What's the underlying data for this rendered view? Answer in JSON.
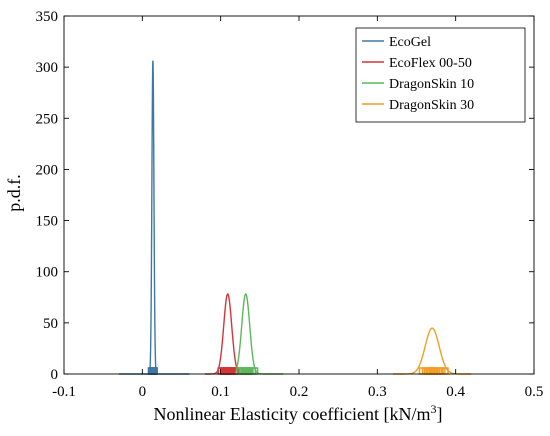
{
  "chart_data": {
    "type": "line",
    "title": "",
    "xlabel": "Nonlinear Elasticity coefficient [kN/m",
    "xlabel_sup": "3",
    "xlabel_end": "]",
    "ylabel": "p.d.f.",
    "xlim": [
      -0.1,
      0.5
    ],
    "ylim": [
      0,
      350
    ],
    "xticks": [
      -0.1,
      0,
      0.1,
      0.2,
      0.3,
      0.4,
      0.5
    ],
    "xtick_labels": [
      "-0.1",
      "0",
      "0.1",
      "0.2",
      "0.3",
      "0.4",
      "0.5"
    ],
    "yticks": [
      0,
      50,
      100,
      150,
      200,
      250,
      300,
      350
    ],
    "ytick_labels": [
      "0",
      "50",
      "100",
      "150",
      "200",
      "250",
      "300",
      "350"
    ],
    "grid": false,
    "legend_position": "top-right",
    "series": [
      {
        "name": "EcoGel",
        "color": "#3f78a6",
        "mean": 0.0135,
        "sd": 0.0013,
        "curve_range": [
          -0.03,
          0.06
        ],
        "samples": [
          0.011,
          0.0118,
          0.0124,
          0.0128,
          0.0131,
          0.0134,
          0.0136,
          0.0138,
          0.0141,
          0.0145,
          0.015,
          0.0158
        ]
      },
      {
        "name": "EcoFlex 00-50",
        "color": "#d2353a",
        "mean": 0.109,
        "sd": 0.0051,
        "curve_range": [
          0.08,
          0.14
        ],
        "samples": [
          0.1,
          0.103,
          0.105,
          0.107,
          0.108,
          0.109,
          0.11,
          0.111,
          0.113,
          0.115,
          0.118,
          0.12
        ]
      },
      {
        "name": "DragonSkin 10",
        "color": "#5cb85c",
        "mean": 0.132,
        "sd": 0.0051,
        "curve_range": [
          0.1,
          0.18
        ],
        "samples": [
          0.124,
          0.127,
          0.129,
          0.13,
          0.131,
          0.132,
          0.133,
          0.134,
          0.136,
          0.138,
          0.141,
          0.144
        ]
      },
      {
        "name": "DragonSkin 30",
        "color": "#f39c24",
        "mean": 0.37,
        "sd": 0.0089,
        "curve_range": [
          0.32,
          0.42
        ],
        "samples": [
          0.357,
          0.361,
          0.364,
          0.366,
          0.368,
          0.37,
          0.372,
          0.374,
          0.376,
          0.379,
          0.383,
          0.387
        ]
      }
    ]
  }
}
